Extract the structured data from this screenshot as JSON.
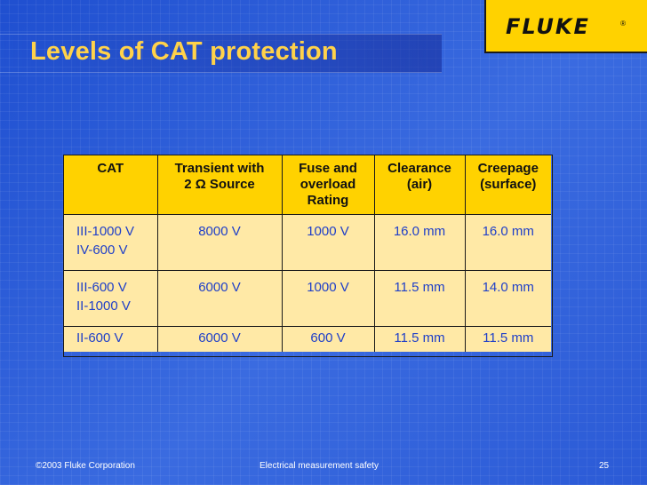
{
  "title": "Levels of CAT protection",
  "logo": {
    "text": "FLUKE",
    "reg": "®"
  },
  "table": {
    "headers": [
      {
        "line1": "CAT",
        "line2": "",
        "line3": ""
      },
      {
        "line1": "Transient with",
        "line2": "2 Ω Source",
        "line3": ""
      },
      {
        "line1": "Fuse and",
        "line2": "overload",
        "line3": "Rating"
      },
      {
        "line1": "Clearance",
        "line2": "(air)",
        "line3": ""
      },
      {
        "line1": "Creepage",
        "line2": "(surface)",
        "line3": ""
      }
    ],
    "rows": [
      {
        "cat_line1": "III-1000 V",
        "cat_line2": "IV-600 V",
        "transient": "8000 V",
        "fuse": "1000 V",
        "clearance": "16.0 mm",
        "creepage": "16.0 mm"
      },
      {
        "cat_line1": "III-600 V",
        "cat_line2": "II-1000 V",
        "transient": "6000 V",
        "fuse": "1000 V",
        "clearance": "11.5 mm",
        "creepage": "14.0 mm"
      },
      {
        "cat_line1": "II-600 V",
        "cat_line2": "",
        "transient": "6000 V",
        "fuse": "600 V",
        "clearance": "11.5 mm",
        "creepage": "11.5 mm"
      }
    ]
  },
  "footer": {
    "copyright": "©2003 Fluke Corporation",
    "subject": "Electrical measurement safety",
    "page": "25"
  },
  "colors": {
    "title": "#ffd24a",
    "header_bg": "#ffd200",
    "cell_bg": "#ffe9a6",
    "cell_text": "#1f3fc8",
    "background": "#2f5fd9"
  }
}
